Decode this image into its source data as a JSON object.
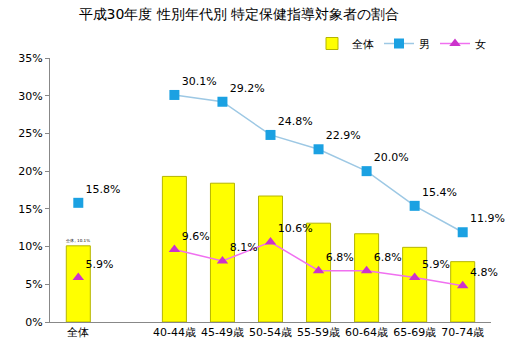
{
  "chart_data": {
    "type": "bar",
    "title": "平成30年度 性別年代別 特定保健指導対象者の割合",
    "categories": [
      "全体",
      null,
      "40-44歳",
      "45-49歳",
      "50-54歳",
      "55-59歳",
      "60-64歳",
      "65-69歳",
      "70-74歳"
    ],
    "series": [
      {
        "name": "全体",
        "type": "bar",
        "color": "#FFFF00",
        "values": [
          10.1,
          null,
          19.3,
          18.4,
          16.7,
          13.1,
          11.7,
          9.9,
          8.0
        ],
        "value_labels": [
          "全体, 10.1%",
          null,
          null,
          null,
          null,
          null,
          null,
          null,
          null
        ]
      },
      {
        "name": "男",
        "type": "line",
        "color": "#1BA1E2",
        "marker": "square",
        "line_style": "solid",
        "values": [
          15.8,
          null,
          30.1,
          29.2,
          24.8,
          22.9,
          20.0,
          15.4,
          11.9
        ],
        "value_labels": [
          "15.8%",
          null,
          "30.1%",
          "29.2%",
          "24.8%",
          "22.9%",
          "20.0%",
          "15.4%",
          "11.9%"
        ]
      },
      {
        "name": "女",
        "type": "line",
        "color": "#CC33CC",
        "marker": "triangle-up",
        "line_style": "solid",
        "values": [
          5.9,
          null,
          9.6,
          8.1,
          10.6,
          6.8,
          6.8,
          5.9,
          4.8
        ],
        "value_labels": [
          "5.9%",
          null,
          "9.6%",
          "8.1%",
          "10.6%",
          "6.8%",
          "6.8%",
          "5.9%",
          "4.8%"
        ]
      }
    ],
    "ylim": [
      0,
      35
    ],
    "yticks": [
      {
        "value": 0,
        "label": "0%"
      },
      {
        "value": 5,
        "label": "5%"
      },
      {
        "value": 10,
        "label": "10%"
      },
      {
        "value": 15,
        "label": "15%"
      },
      {
        "value": 20,
        "label": "20%"
      },
      {
        "value": 25,
        "label": "25%"
      },
      {
        "value": 30,
        "label": "30%"
      },
      {
        "value": 35,
        "label": "35%"
      }
    ],
    "grid": false,
    "legend": "top right"
  }
}
